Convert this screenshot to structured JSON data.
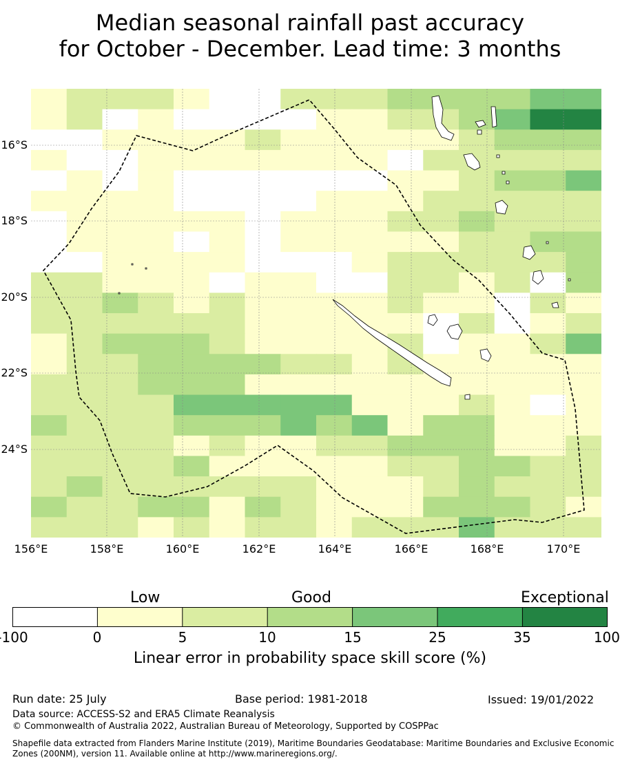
{
  "title_line1": "Median seasonal rainfall past accuracy",
  "title_line2": "for October - December. Lead time: 3 months",
  "map": {
    "lon_labels": [
      "156°E",
      "158°E",
      "160°E",
      "162°E",
      "164°E",
      "166°E",
      "168°E",
      "170°E"
    ],
    "lat_labels": [
      "16°S",
      "18°S",
      "20°S",
      "22°S",
      "24°S"
    ],
    "grid": [
      "1222100222333344",
      "1201000011223466",
      "0011112111112333",
      "1001111111022222",
      "0101000000112334",
      "1111000011122222",
      "0111110111223222",
      "0111010111112233",
      "0011110001222223",
      "2211101100221203",
      "2232121111211021",
      "2222221111102012",
      "1233321111201124",
      "1223333221211111",
      "2223331111111111",
      "2222444441112101",
      "3222333434133111",
      "2222121122333112",
      "2222311111223322",
      "2322222211123222",
      "3223313211133321",
      "2221212212224222"
    ]
  },
  "legend": {
    "categories": [
      "Low",
      "Good",
      "Exceptional"
    ],
    "colors": [
      "#ffffff",
      "#fefecd",
      "#daeda2",
      "#b3dd89",
      "#7bc67a",
      "#41ab5d",
      "#238443"
    ],
    "ticks": [
      "-100",
      "0",
      "5",
      "10",
      "15",
      "25",
      "35",
      "100"
    ],
    "title": "Linear error in probability space skill score (%)"
  },
  "footer": {
    "run_date": "Run date: 25 July",
    "base_period": "Base period: 1981-2018",
    "issued": "Issued: 19/01/2022",
    "data_source": "Data source: ACCESS-S2 and ERA5 Climate Reanalysis",
    "copyright": "© Commonwealth of Australia 2022, Australian Bureau of Meteorology, Supported by COSPPac",
    "shapefile": "Shapefile data extracted from Flanders Marine Institute (2019), Maritime Boundaries Geodatabase: Maritime Boundaries and Exclusive Economic Zones (200NM), version 11. Available online at http://www.marineregions.org/."
  }
}
